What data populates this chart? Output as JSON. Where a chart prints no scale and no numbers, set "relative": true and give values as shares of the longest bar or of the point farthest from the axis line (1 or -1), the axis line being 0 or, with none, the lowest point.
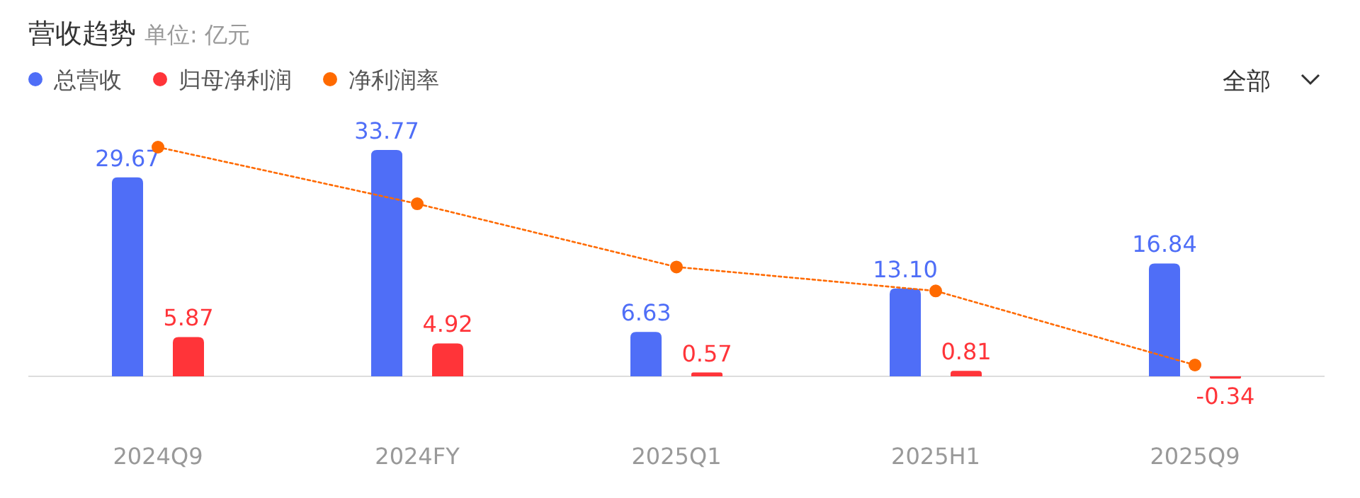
{
  "chart_data": [
    {
      "type": "bar",
      "title": "营收趋势",
      "subtitle": "单位: 亿元",
      "categories": [
        "2024Q9",
        "2024FY",
        "2025Q1",
        "2025H1",
        "2025Q9"
      ],
      "series": [
        {
          "name": "总营收",
          "color": "#4f6ef7",
          "values": [
            29.67,
            33.77,
            6.63,
            13.1,
            16.84
          ],
          "value_labels": [
            "29.67",
            "33.77",
            "6.63",
            "13.10",
            "16.84"
          ]
        },
        {
          "name": "归母净利润",
          "color": "#ff3439",
          "values": [
            5.87,
            4.92,
            0.57,
            0.81,
            -0.34
          ],
          "value_labels": [
            "5.87",
            "4.92",
            "0.57",
            "0.81",
            "-0.34"
          ]
        }
      ],
      "legend": "top left",
      "annotations": [
        "全部"
      ]
    },
    {
      "type": "line",
      "relative": true,
      "categories": [
        null,
        null,
        null,
        null,
        null
      ],
      "series": [
        {
          "name": "净利润率",
          "color": "#ff6a00",
          "marker": "circle",
          "line_style": "dotted",
          "values": [
            1,
            0.74,
            0.45,
            0.34,
            0
          ]
        }
      ]
    }
  ]
}
